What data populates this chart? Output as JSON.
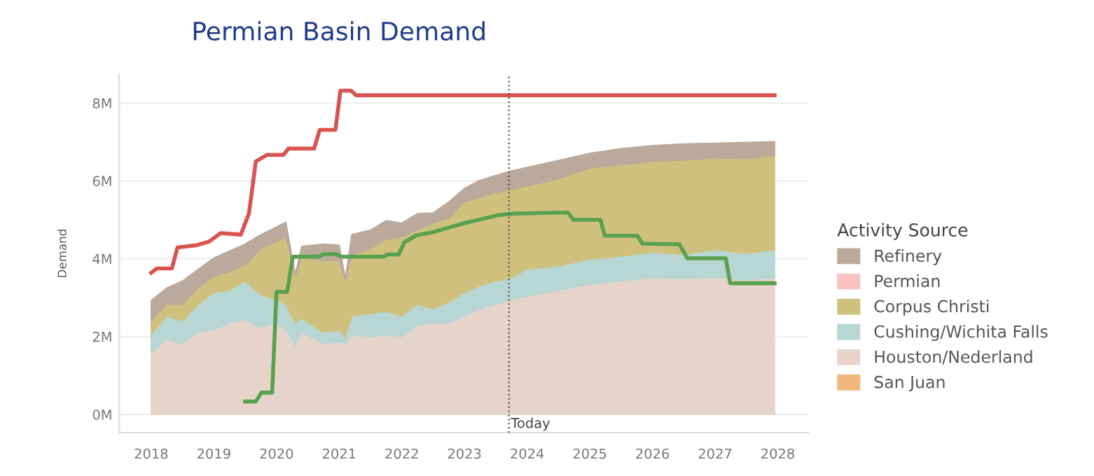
{
  "chart_data": {
    "type": "area",
    "title": "Permian Basin Demand",
    "ylabel": "Demand",
    "legend_title": "Activity Source",
    "stacked": true,
    "legend": "right",
    "grid": "y",
    "x": [
      2018,
      2018.25,
      2018.5,
      2018.75,
      2019,
      2019.25,
      2019.5,
      2019.75,
      2020,
      2020.15,
      2020.3,
      2020.4,
      2020.75,
      2021,
      2021.1,
      2021.2,
      2021.5,
      2021.75,
      2022,
      2022.25,
      2022.5,
      2022.75,
      2023,
      2023.25,
      2023.5,
      2023.75,
      2024,
      2024.5,
      2025,
      2025.5,
      2026,
      2026.5,
      2027,
      2027.5,
      2027.95
    ],
    "series": [
      {
        "name": "San Juan",
        "color": "#f0b97b",
        "values": [
          null,
          null,
          null,
          null,
          null,
          null,
          null,
          null,
          null,
          null,
          null,
          null,
          null,
          null,
          null,
          null,
          null,
          null,
          null,
          null,
          null,
          null,
          null,
          null,
          null,
          null,
          null,
          null,
          null,
          null,
          null,
          null,
          null,
          null,
          null
        ]
      },
      {
        "name": "Houston/Nederland",
        "color": "#e6d4ca",
        "values": [
          1.58,
          1.93,
          1.81,
          2.11,
          2.17,
          2.35,
          2.44,
          2.23,
          2.35,
          2.17,
          1.76,
          2.11,
          1.81,
          1.87,
          1.81,
          2.05,
          1.99,
          2.05,
          1.99,
          2.29,
          2.35,
          2.35,
          2.53,
          2.71,
          2.83,
          2.95,
          3.03,
          3.19,
          3.34,
          3.43,
          3.51,
          3.49,
          3.52,
          3.46,
          3.51
        ]
      },
      {
        "name": "Cushing/Wichita Falls",
        "color": "#b8d6d3",
        "values": [
          0.47,
          0.6,
          0.6,
          0.72,
          0.96,
          0.84,
          0.99,
          0.84,
          0.6,
          0.66,
          0.59,
          0.36,
          0.3,
          0.3,
          0.18,
          0.48,
          0.6,
          0.6,
          0.54,
          0.54,
          0.36,
          0.54,
          0.6,
          0.6,
          0.6,
          0.56,
          0.7,
          0.63,
          0.65,
          0.63,
          0.66,
          0.62,
          0.71,
          0.68,
          0.72
        ]
      },
      {
        "name": "Corpus Christi",
        "color": "#cfc17d",
        "values": [
          0.36,
          0.3,
          0.42,
          0.42,
          0.42,
          0.48,
          0.41,
          1.19,
          1.49,
          1.73,
          1.2,
          1.55,
          1.85,
          1.79,
          1.44,
          1.55,
          1.67,
          1.85,
          2.03,
          1.91,
          2.21,
          2.15,
          2.33,
          2.27,
          2.27,
          2.27,
          2.14,
          2.23,
          2.34,
          2.35,
          2.33,
          2.42,
          2.36,
          2.43,
          2.42
        ]
      },
      {
        "name": "Permian",
        "color": "#f8c3c0",
        "values": [
          null,
          null,
          null,
          null,
          null,
          null,
          null,
          null,
          null,
          null,
          null,
          null,
          null,
          null,
          null,
          null,
          null,
          null,
          null,
          null,
          null,
          null,
          null,
          null,
          null,
          null,
          null,
          null,
          null,
          null,
          null,
          null,
          null,
          null,
          null
        ]
      },
      {
        "name": "Refinery",
        "color": "#bba99c",
        "values": [
          0.52,
          0.42,
          0.6,
          0.48,
          0.47,
          0.53,
          0.54,
          0.36,
          0.38,
          0.38,
          0.05,
          0.3,
          0.42,
          0.39,
          0.07,
          0.54,
          0.48,
          0.48,
          0.36,
          0.42,
          0.26,
          0.42,
          0.35,
          0.44,
          0.44,
          0.48,
          0.48,
          0.48,
          0.38,
          0.42,
          0.41,
          0.42,
          0.38,
          0.42,
          0.36
        ]
      },
      {
        "type": "line",
        "color": "#d9534f",
        "x": [
          2018,
          2018.09,
          2018.33,
          2018.42,
          2018.73,
          2018.92,
          2019.11,
          2019.43,
          2019.56,
          2019.67,
          2019.85,
          2020.11,
          2020.19,
          2020.6,
          2020.69,
          2020.94,
          2021.02,
          2021.19,
          2021.27,
          2027.95
        ],
        "values": [
          3.64,
          3.75,
          3.75,
          4.29,
          4.35,
          4.44,
          4.66,
          4.62,
          5.16,
          6.5,
          6.67,
          6.67,
          6.83,
          6.83,
          7.31,
          7.31,
          8.32,
          8.32,
          8.2,
          8.2
        ]
      },
      {
        "type": "line",
        "color": "#59a14f",
        "x": [
          2019.5,
          2019.67,
          2019.76,
          2019.93,
          2020.0,
          2020.17,
          2020.26,
          2020.67,
          2020.76,
          2020.95,
          2021.04,
          2021.71,
          2021.78,
          2021.95,
          2022.04,
          2022.23,
          2022.49,
          2022.75,
          2023.01,
          2023.28,
          2023.54,
          2023.8,
          2024.65,
          2024.74,
          2025.17,
          2025.24,
          2025.76,
          2025.84,
          2026.43,
          2026.56,
          2027.17,
          2027.24,
          2027.95
        ],
        "values": [
          0.33,
          0.33,
          0.56,
          0.56,
          3.15,
          3.15,
          4.05,
          4.05,
          4.12,
          4.12,
          4.05,
          4.05,
          4.11,
          4.11,
          4.42,
          4.6,
          4.68,
          4.8,
          4.92,
          5.02,
          5.12,
          5.16,
          5.19,
          5,
          5,
          4.59,
          4.59,
          4.39,
          4.37,
          4.01,
          4.01,
          3.37,
          3.37
        ]
      }
    ],
    "ref_lines": [
      {
        "axis": "x",
        "value": 2023.71,
        "label": "Today",
        "color": "#555555",
        "line_style": "dotted"
      }
    ],
    "xlim": [
      2017.49,
      2028.49
    ],
    "xticks": [
      2018,
      2019,
      2020,
      2021,
      2022,
      2023,
      2024,
      2025,
      2026,
      2027,
      2028
    ],
    "ylim": [
      -0.47,
      8.74
    ],
    "yticks": [
      {
        "value": 0,
        "label": "0M"
      },
      {
        "value": 2,
        "label": "2M"
      },
      {
        "value": 4,
        "label": "4M"
      },
      {
        "value": 6,
        "label": "6M"
      },
      {
        "value": 8,
        "label": "8M"
      }
    ]
  }
}
